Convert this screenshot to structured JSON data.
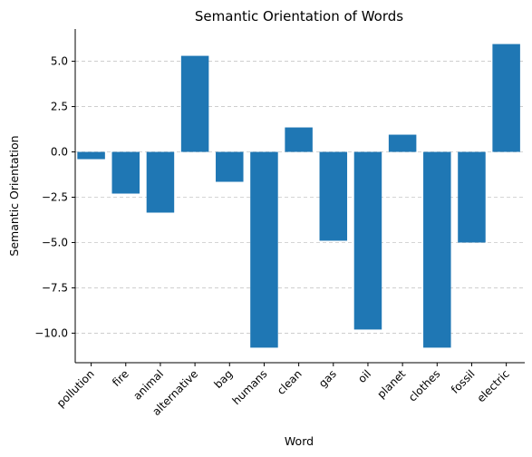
{
  "chart_data": {
    "type": "bar",
    "title": "Semantic Orientation of Words",
    "xlabel": "Word",
    "ylabel": "Semantic Orientation",
    "categories": [
      "pollution",
      "fire",
      "animal",
      "alternative",
      "bag",
      "humans",
      "clean",
      "gas",
      "oil",
      "planet",
      "clothes",
      "fossil",
      "electric"
    ],
    "values": [
      -0.4,
      -2.3,
      -3.35,
      5.3,
      -1.65,
      -10.8,
      1.35,
      -4.9,
      -9.8,
      0.95,
      -10.8,
      -5.0,
      5.95
    ],
    "ylim": [
      -11.63,
      6.78
    ],
    "yticks": [
      5.0,
      2.5,
      0.0,
      -2.5,
      -5.0,
      -7.5,
      -10.0
    ],
    "ytick_labels": [
      "5.0",
      "2.5",
      "0.0",
      "−2.5",
      "−5.0",
      "−7.5",
      "−10.0"
    ],
    "grid": "y-dashed",
    "bar_color": "#1f77b4",
    "grid_color": "#c8c8c8"
  }
}
